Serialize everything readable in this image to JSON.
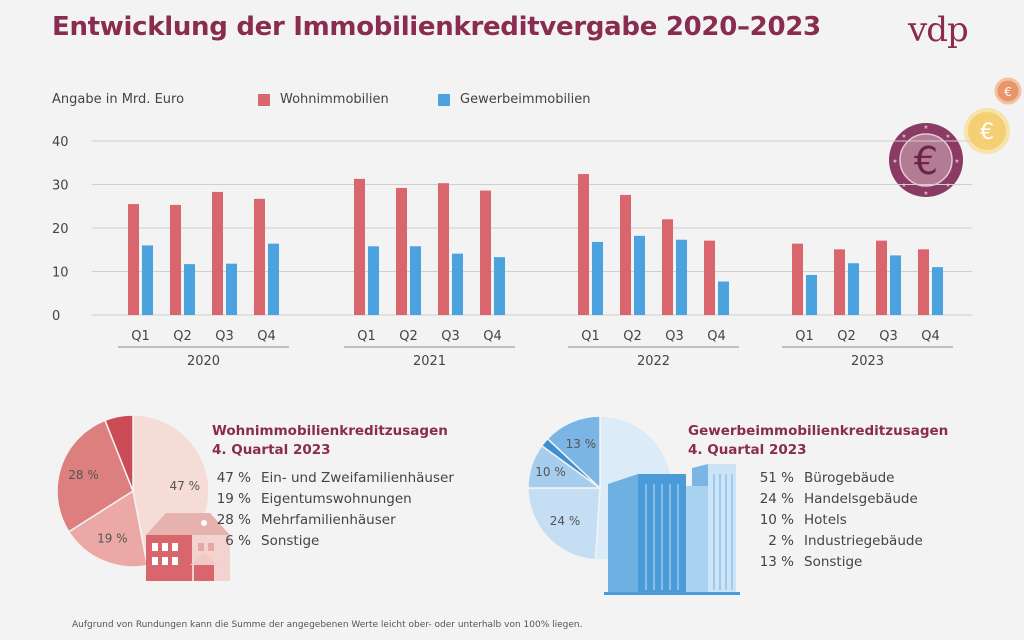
{
  "header": {
    "title": "Entwicklung der Immobilienkreditvergabe 2020–2023",
    "logo": "vdp"
  },
  "chart_data": [
    {
      "type": "bar",
      "ylabel": "Angabe in Mrd. Euro",
      "ylim": [
        0,
        40
      ],
      "yticks": [
        0,
        10,
        20,
        30,
        40
      ],
      "grid": true,
      "legend_position": "top",
      "years": [
        "2020",
        "2021",
        "2022",
        "2023"
      ],
      "quarters": [
        "Q1",
        "Q2",
        "Q3",
        "Q4"
      ],
      "series": [
        {
          "name": "Wohnimmobilien",
          "color": "#d9666c",
          "values": [
            25.5,
            25.3,
            28.3,
            26.7,
            31.3,
            29.2,
            30.3,
            28.6,
            32.4,
            27.6,
            22.0,
            17.1,
            16.4,
            15.1,
            17.1,
            15.1
          ]
        },
        {
          "name": "Gewerbeimmobilien",
          "color": "#4aa3df",
          "values": [
            16.0,
            11.7,
            11.8,
            16.4,
            15.8,
            15.8,
            14.1,
            13.3,
            16.8,
            18.2,
            17.3,
            7.7,
            9.2,
            11.9,
            13.7,
            11.0
          ]
        }
      ]
    },
    {
      "type": "pie",
      "title": "Wohnimmobilienkreditzusagen",
      "subtitle": "4. Quartal 2023",
      "slices": [
        {
          "label": "Ein- und Zweifamilienhäuser",
          "value": 47,
          "pct_label": "47 %",
          "color": "#f6dcd6"
        },
        {
          "label": "Eigentumswohnungen",
          "value": 19,
          "pct_label": "19 %",
          "color": "#eba8a4"
        },
        {
          "label": "Mehrfamilienhäuser",
          "value": 28,
          "pct_label": "28 %",
          "color": "#de7f7f"
        },
        {
          "label": "Sonstige",
          "value": 6,
          "pct_label": "",
          "color": "#cb4b57"
        }
      ]
    },
    {
      "type": "pie",
      "title": "Gewerbeimmobilienkreditzusagen",
      "subtitle": "4. Quartal 2023",
      "slices": [
        {
          "label": "Bürogebäude",
          "value": 51,
          "pct_label": "51 %",
          "color": "#dcebf8"
        },
        {
          "label": "Handelsgebäude",
          "value": 24,
          "pct_label": "24 %",
          "color": "#c5def4"
        },
        {
          "label": "Hotels",
          "value": 10,
          "pct_label": "10 %",
          "color": "#a6cdee"
        },
        {
          "label": "Industriegebäude",
          "value": 2,
          "pct_label": "",
          "color": "#3d8fd0"
        },
        {
          "label": "Sonstige",
          "value": 13,
          "pct_label": "13 %",
          "color": "#7ab5e5"
        }
      ]
    }
  ],
  "pie_lists": {
    "wohn": [
      {
        "pct": "47 %",
        "label": "Ein- und Zweifamilienhäuser"
      },
      {
        "pct": "19 %",
        "label": "Eigentumswohnungen"
      },
      {
        "pct": "28 %",
        "label": "Mehrfamilienhäuser"
      },
      {
        "pct": "6 %",
        "label": "Sonstige"
      }
    ],
    "gewerbe": [
      {
        "pct": "51 %",
        "label": "Bürogebäude"
      },
      {
        "pct": "24 %",
        "label": "Handelsgebäude"
      },
      {
        "pct": "10 %",
        "label": "Hotels"
      },
      {
        "pct": "2 %",
        "label": "Industriegebäude"
      },
      {
        "pct": "13 %",
        "label": "Sonstige"
      }
    ]
  },
  "coins": {
    "symbol": "€"
  },
  "footnote": "Aufgrund von Rundungen kann die Summe der angegebenen Werte leicht ober- oder unterhalb von 100% liegen."
}
